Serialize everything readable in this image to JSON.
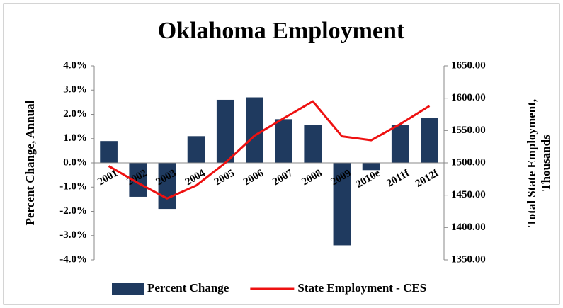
{
  "chart_data": {
    "type": "combo",
    "title": "Oklahoma Employment",
    "ylabel": "Percent Change, Annual",
    "y2label": [
      "Total State Employment,",
      "Thousands"
    ],
    "categories": [
      "2001",
      "2002",
      "2003",
      "2004",
      "2005",
      "2006",
      "2007",
      "2008",
      "2009",
      "2010e",
      "2011f",
      "2012f"
    ],
    "series": [
      {
        "name": "Percent Change",
        "type": "bar",
        "axis": "y",
        "color": "#1f3a5f",
        "values": [
          0.9,
          -1.4,
          -1.9,
          1.1,
          2.6,
          2.7,
          1.8,
          1.55,
          -3.4,
          -0.3,
          1.55,
          1.85
        ]
      },
      {
        "name": "State Employment - CES",
        "type": "line",
        "axis": "y2",
        "color": "#ee1111",
        "values": [
          1495,
          1469,
          1445,
          1465,
          1500,
          1542,
          1569,
          1595,
          1541,
          1535,
          1560,
          1588
        ]
      }
    ],
    "ylim": [
      -4,
      4
    ],
    "yticks": [
      {
        "value": 4,
        "label": "4.0%"
      },
      {
        "value": 3,
        "label": "3.0%"
      },
      {
        "value": 2,
        "label": "2.0%"
      },
      {
        "value": 1,
        "label": "1.0%"
      },
      {
        "value": 0,
        "label": "0.0%"
      },
      {
        "value": -1,
        "label": "-1.0%"
      },
      {
        "value": -2,
        "label": "-2.0%"
      },
      {
        "value": -3,
        "label": "-3.0%"
      },
      {
        "value": -4,
        "label": "-4.0%"
      }
    ],
    "y2lim": [
      1350,
      1650
    ],
    "y2ticks": [
      {
        "value": 1650,
        "label": "1650.00"
      },
      {
        "value": 1600,
        "label": "1600.00"
      },
      {
        "value": 1550,
        "label": "1550.00"
      },
      {
        "value": 1500,
        "label": "1500.00"
      },
      {
        "value": 1450,
        "label": "1450.00"
      },
      {
        "value": 1400,
        "label": "1400.00"
      },
      {
        "value": 1350,
        "label": "1350.00"
      }
    ],
    "legend": "bottom"
  }
}
